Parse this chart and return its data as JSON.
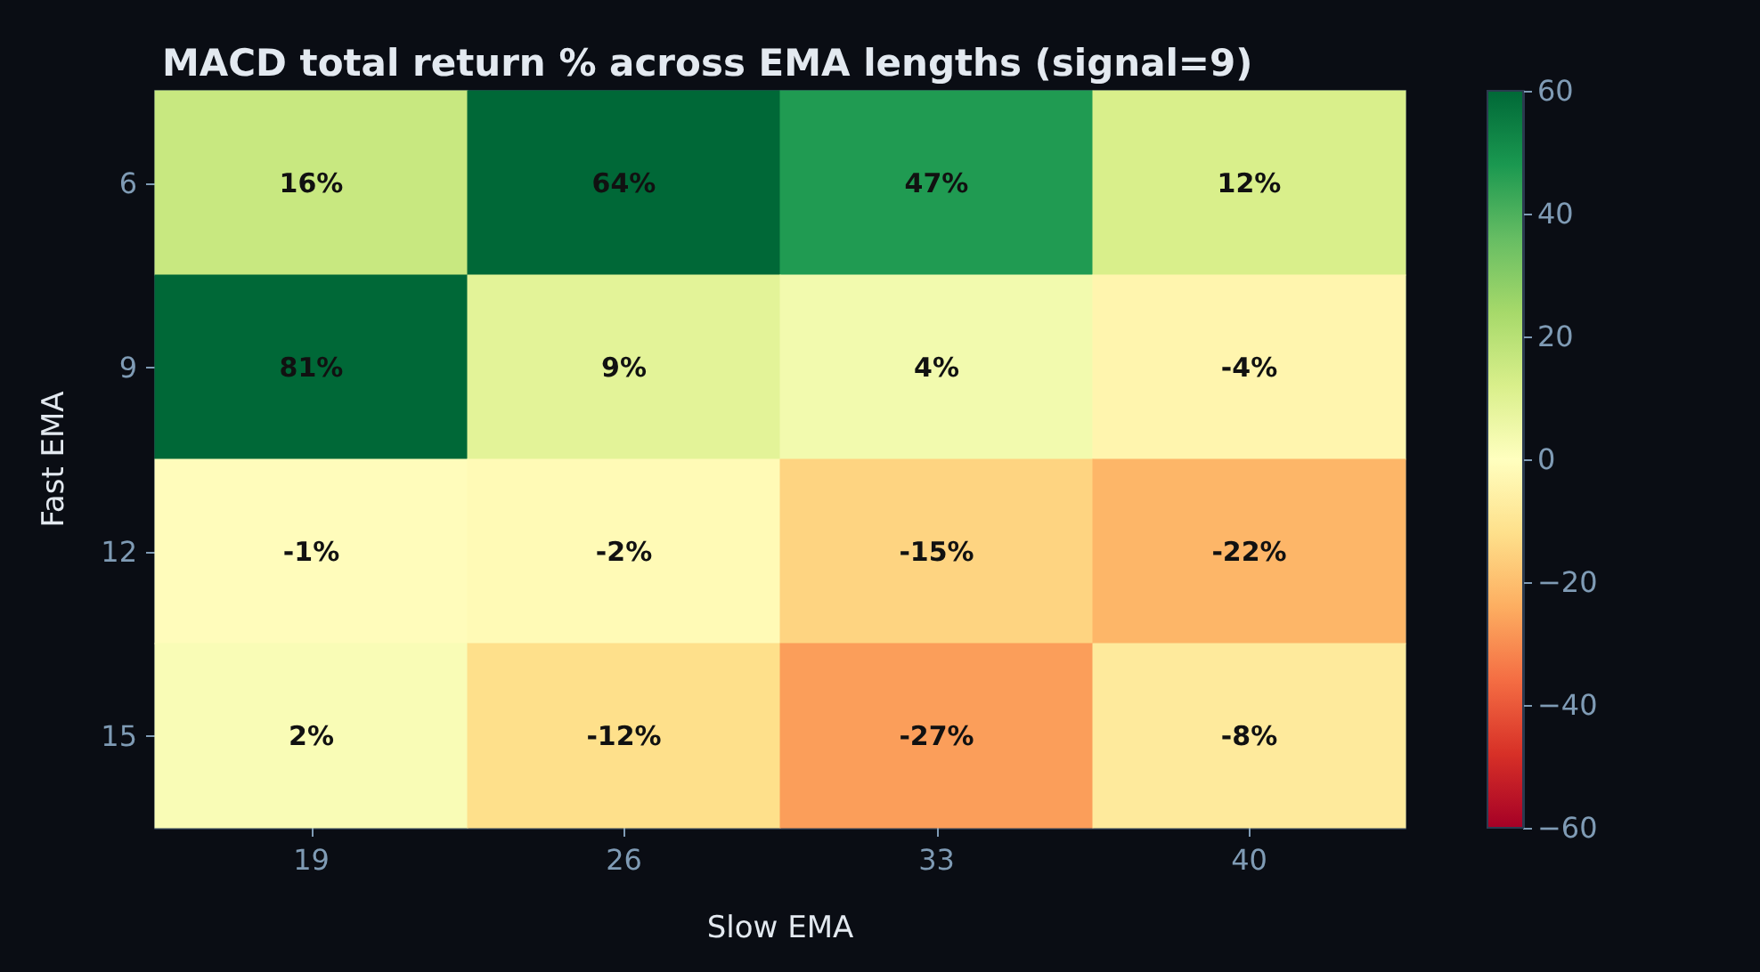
{
  "chart_data": {
    "type": "heatmap",
    "title": "MACD total return % across EMA lengths (signal=9)",
    "xlabel": "Slow EMA",
    "ylabel": "Fast EMA",
    "categories": [
      "19",
      "26",
      "33",
      "40"
    ],
    "y_categories": [
      "6",
      "9",
      "12",
      "15"
    ],
    "cells": [
      [
        16,
        64,
        47,
        12
      ],
      [
        81,
        9,
        4,
        -4
      ],
      [
        -1,
        -2,
        -15,
        -22
      ],
      [
        2,
        -12,
        -27,
        -8
      ]
    ],
    "cell_labels": [
      [
        "16%",
        "64%",
        "47%",
        "12%"
      ],
      [
        "81%",
        "9%",
        "4%",
        "-4%"
      ],
      [
        "-1%",
        "-2%",
        "-15%",
        "-22%"
      ],
      [
        "2%",
        "-12%",
        "-27%",
        "-8%"
      ]
    ],
    "clim": [
      -60,
      60
    ],
    "cticks": [
      {
        "value": -60,
        "label": "−60"
      },
      {
        "value": -40,
        "label": "−40"
      },
      {
        "value": -20,
        "label": "−20"
      },
      0,
      20,
      40,
      60
    ]
  }
}
